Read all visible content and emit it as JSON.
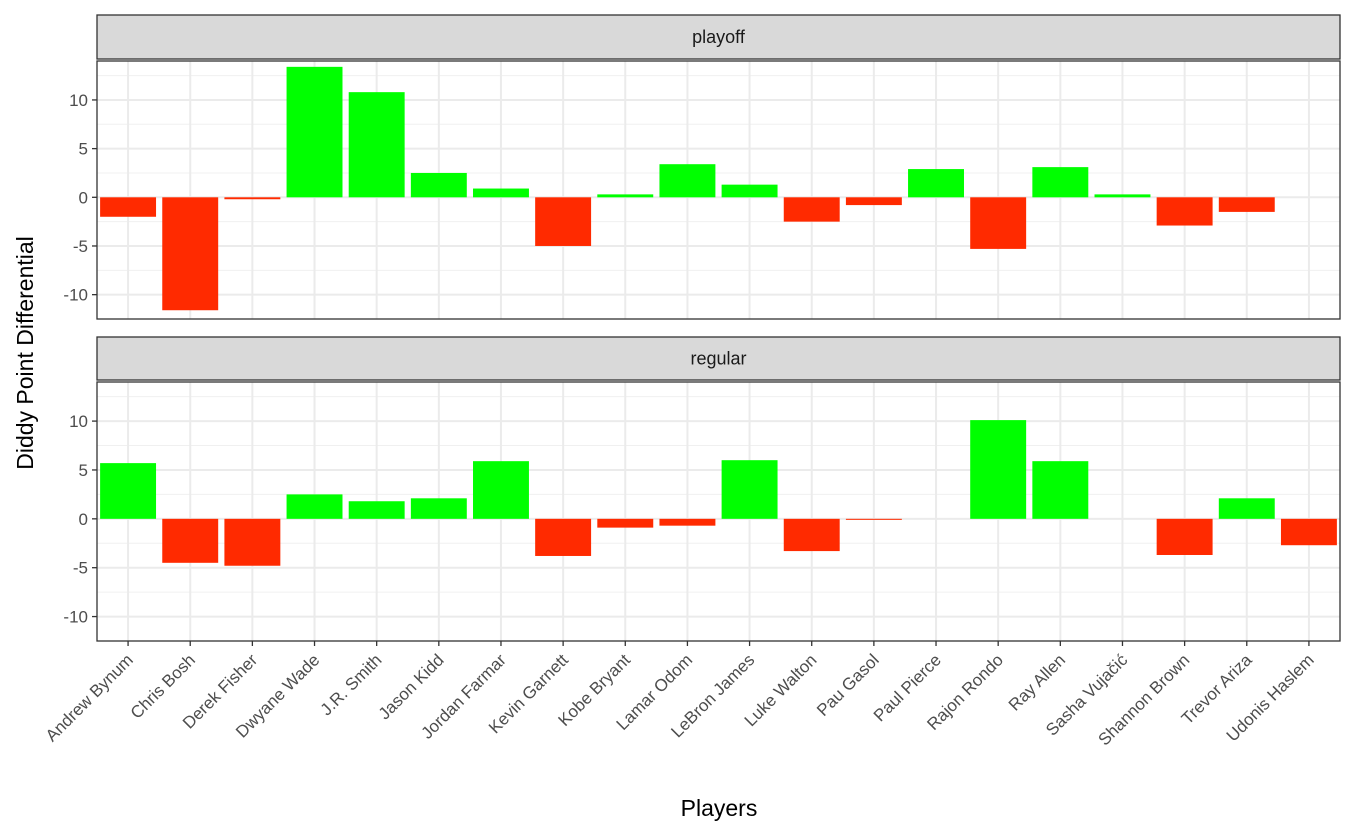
{
  "chart_data": {
    "type": "bar",
    "xlabel": "Players",
    "ylabel": "Diddy Point Differential",
    "categories": [
      "Andrew Bynum",
      "Chris Bosh",
      "Derek Fisher",
      "Dwyane Wade",
      "J.R. Smith",
      "Jason Kidd",
      "Jordan Farmar",
      "Kevin Garnett",
      "Kobe Bryant",
      "Lamar Odom",
      "LeBron James",
      "Luke Walton",
      "Pau Gasol",
      "Paul Pierce",
      "Rajon Rondo",
      "Ray Allen",
      "Sasha Vujačić",
      "Shannon Brown",
      "Trevor Ariza",
      "Udonis Haslem"
    ],
    "ylim": [
      -12.5,
      14
    ],
    "yticks": [
      -10,
      -5,
      0,
      5,
      10
    ],
    "grid": true,
    "colors": {
      "positive": "#00FF00",
      "negative": "#FF2A00"
    },
    "facets": [
      {
        "name": "playoff",
        "values": [
          -2.0,
          -11.6,
          -0.2,
          13.4,
          10.8,
          2.5,
          0.9,
          -5.0,
          0.3,
          3.4,
          1.3,
          -2.5,
          -0.8,
          2.9,
          -5.3,
          3.1,
          0.3,
          -2.9,
          -1.5,
          null
        ]
      },
      {
        "name": "regular",
        "values": [
          5.7,
          -4.5,
          -4.8,
          2.5,
          1.8,
          2.1,
          5.9,
          -3.8,
          -0.9,
          -0.7,
          6.0,
          -3.3,
          -0.1,
          null,
          10.1,
          5.9,
          null,
          -3.7,
          2.1,
          -2.7
        ]
      }
    ]
  }
}
